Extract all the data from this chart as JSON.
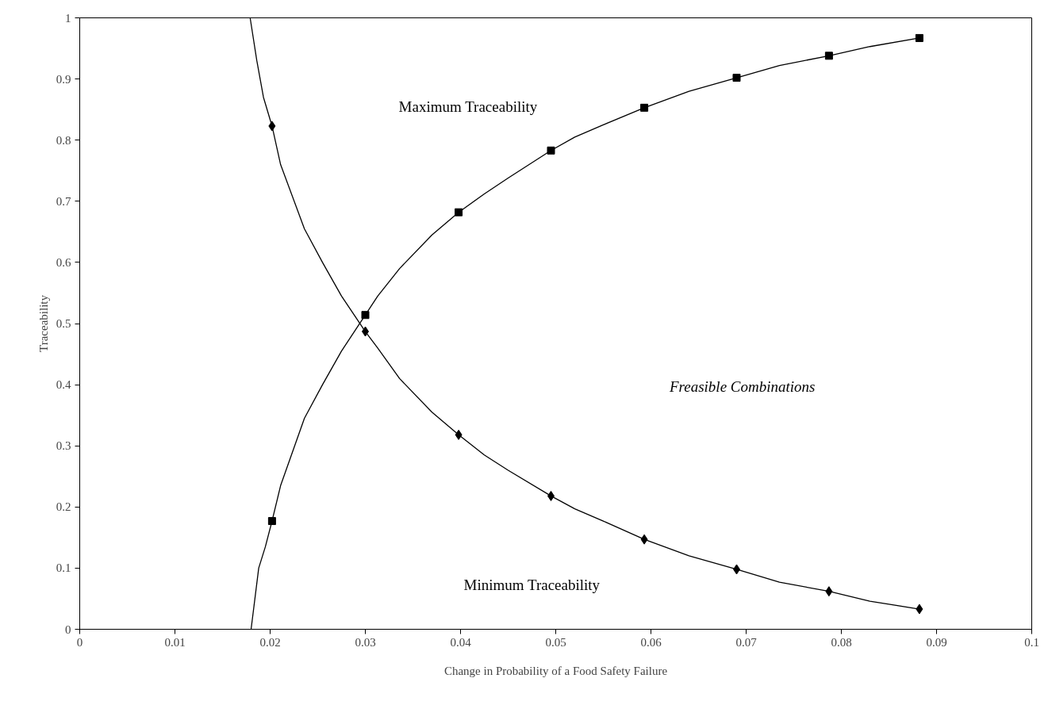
{
  "chart_data": {
    "type": "line",
    "xlabel": "Change in Probability of a Food Safety Failure",
    "ylabel": "Traceability",
    "xlim": [
      0,
      0.1
    ],
    "ylim": [
      0,
      1
    ],
    "xticks": [
      0,
      0.01,
      0.02,
      0.03,
      0.04,
      0.05,
      0.06,
      0.07,
      0.08,
      0.09,
      0.1
    ],
    "yticks": [
      0,
      0.1,
      0.2,
      0.3,
      0.4,
      0.5,
      0.6,
      0.7,
      0.8,
      0.9,
      1
    ],
    "grid": false,
    "line_style": "solid",
    "series": [
      {
        "marker": "none",
        "color": "#000000",
        "x": [
          0.018,
          0.0188,
          0.0195,
          0.0202,
          0.0211,
          0.0236,
          0.0255,
          0.0275,
          0.03,
          0.0313,
          0.0336,
          0.037,
          0.0398,
          0.0425,
          0.045,
          0.0495,
          0.052,
          0.055,
          0.0593,
          0.064,
          0.069,
          0.0735,
          0.0787,
          0.083,
          0.0882
        ],
        "values": [
          0,
          0.1,
          0.135,
          0.177,
          0.235,
          0.345,
          0.4,
          0.455,
          0.514,
          0.545,
          0.59,
          0.645,
          0.682,
          0.712,
          0.738,
          0.783,
          0.805,
          0.825,
          0.853,
          0.88,
          0.902,
          0.922,
          0.938,
          0.953,
          0.967
        ]
      },
      {
        "type": "scatter",
        "marker": "square",
        "color": "#000000",
        "x": [
          0.0202,
          0.03,
          0.0398,
          0.0495,
          0.0593,
          0.069,
          0.0787,
          0.0882
        ],
        "values": [
          0.177,
          0.514,
          0.682,
          0.783,
          0.853,
          0.902,
          0.938,
          0.967
        ]
      },
      {
        "marker": "none",
        "color": "#000000",
        "x": [
          0.0179,
          0.0186,
          0.0193,
          0.0202,
          0.0211,
          0.0236,
          0.0255,
          0.0275,
          0.03,
          0.0313,
          0.0336,
          0.037,
          0.0398,
          0.0425,
          0.045,
          0.0495,
          0.052,
          0.055,
          0.0593,
          0.064,
          0.069,
          0.0735,
          0.0787,
          0.083,
          0.0882
        ],
        "values": [
          1.0,
          0.93,
          0.87,
          0.823,
          0.76,
          0.655,
          0.6,
          0.545,
          0.487,
          0.46,
          0.41,
          0.355,
          0.318,
          0.285,
          0.26,
          0.218,
          0.197,
          0.177,
          0.147,
          0.12,
          0.098,
          0.077,
          0.062,
          0.046,
          0.033
        ]
      },
      {
        "type": "scatter",
        "marker": "diamond",
        "color": "#000000",
        "x": [
          0.0202,
          0.03,
          0.0398,
          0.0495,
          0.0593,
          0.069,
          0.0787,
          0.0882
        ],
        "values": [
          0.823,
          0.487,
          0.318,
          0.218,
          0.147,
          0.098,
          0.062,
          0.033
        ]
      }
    ],
    "annotations": [
      "Maximum Traceability",
      "Minimum Traceability",
      "Freasible Combinations"
    ]
  }
}
